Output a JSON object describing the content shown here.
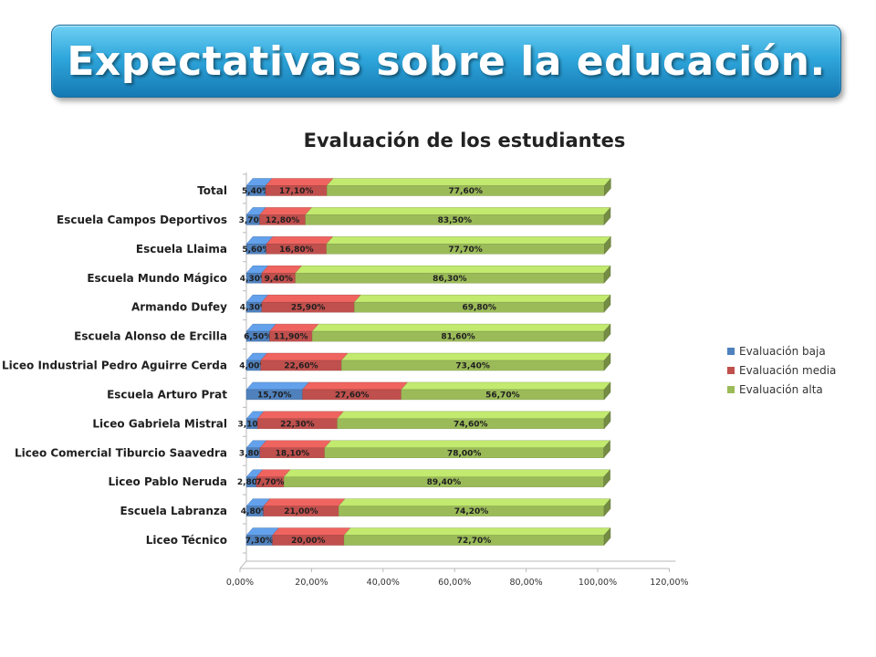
{
  "slide": {
    "title": "Expectativas sobre la educación."
  },
  "chart_data": {
    "type": "bar",
    "orientation": "horizontal",
    "stacked": true,
    "title": "Evaluación de los estudiantes",
    "categories": [
      "Total",
      "Escuela Campos Deportivos",
      "Escuela Llaima",
      "Escuela Mundo Mágico",
      "Armando Dufey",
      "Escuela Alonso de Ercilla",
      "Liceo Industrial Pedro Aguirre Cerda",
      "Escuela Arturo Prat",
      "Liceo Gabriela Mistral",
      "Liceo Comercial Tiburcio Saavedra",
      "Liceo Pablo Neruda",
      "Escuela Labranza",
      "Liceo Técnico"
    ],
    "series": [
      {
        "name": "Evaluación baja",
        "color": "#4f81bd",
        "values": [
          5.4,
          3.7,
          5.6,
          4.3,
          4.3,
          6.5,
          4.0,
          15.7,
          3.1,
          3.8,
          2.8,
          4.8,
          7.3
        ],
        "labels": [
          "5,40%",
          "3,70%",
          "5,60%",
          "4,30%",
          "4,30%",
          "6,50%",
          "4,00%",
          "15,70%",
          "3,10%",
          "3,80%",
          "2,80%",
          "4,80%",
          "7,30%"
        ]
      },
      {
        "name": "Evaluación media",
        "color": "#c0504d",
        "values": [
          17.1,
          12.8,
          16.8,
          9.4,
          25.9,
          11.9,
          22.6,
          27.6,
          22.3,
          18.1,
          7.7,
          21.0,
          20.0
        ],
        "labels": [
          "17,10%",
          "12,80%",
          "16,80%",
          "9,40%",
          "25,90%",
          "11,90%",
          "22,60%",
          "27,60%",
          "22,30%",
          "18,10%",
          "7,70%",
          "21,00%",
          "20,00%"
        ]
      },
      {
        "name": "Evaluación alta",
        "color": "#9bbb59",
        "values": [
          77.6,
          83.5,
          77.7,
          86.3,
          69.8,
          81.6,
          73.4,
          56.7,
          74.6,
          78.0,
          89.4,
          74.2,
          72.7
        ],
        "labels": [
          "77,60%",
          "83,50%",
          "77,70%",
          "86,30%",
          "69,80%",
          "81,60%",
          "73,40%",
          "56,70%",
          "74,60%",
          "78,00%",
          "89,40%",
          "74,20%",
          "72,70%"
        ]
      }
    ],
    "x_ticks": [
      "0,00%",
      "20,00%",
      "40,00%",
      "60,00%",
      "80,00%",
      "100,00%",
      "120,00%"
    ],
    "xlim": [
      0,
      120
    ],
    "legend_position": "right",
    "grid": false
  }
}
